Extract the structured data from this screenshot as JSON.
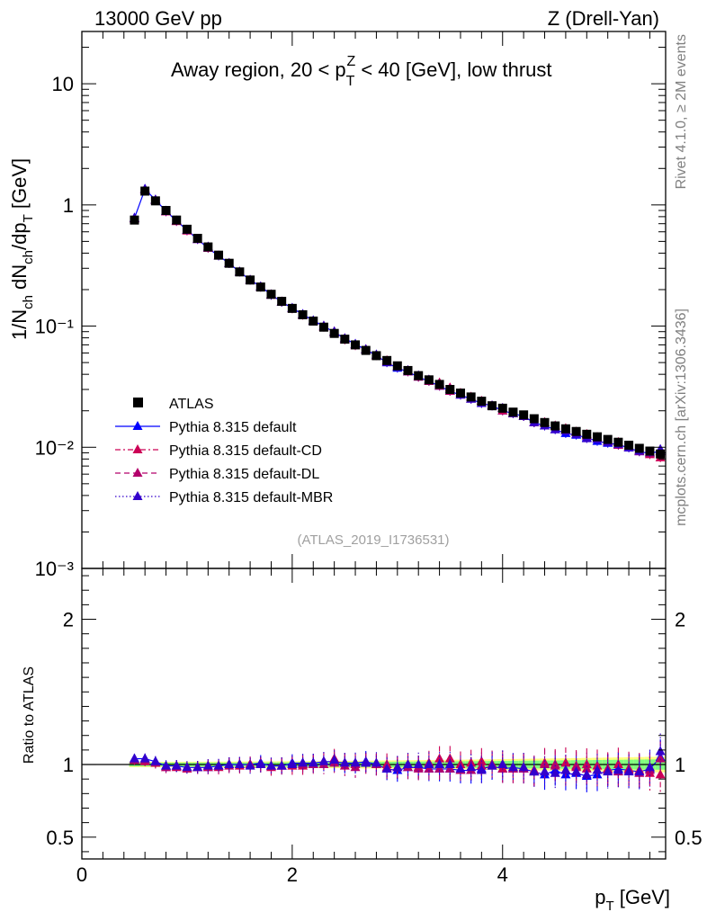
{
  "header": {
    "energy_label": "13000 GeV pp",
    "process_label": "Z (Drell-Yan)"
  },
  "side": {
    "rivet_label": "Rivet 4.1.0, ≥ 2M events",
    "mcplots_label": "mcplots.cern.ch [arXiv:1306.3436]"
  },
  "colors": {
    "atlas": "#000000",
    "default": "#0000ff",
    "default_cd": "#cc0055",
    "default_dl": "#b3006b",
    "default_mbr": "#3300cc",
    "band_yellow": "#ffff80",
    "band_green": "#80ff80"
  },
  "chart_data": [
    {
      "type": "scatter",
      "panel": "main",
      "title": "Away region, 20 < p_T^Z < 40 [GeV], low thrust",
      "ylabel": "1/N_ch dN_ch/dp_T [GeV]",
      "yscale": "log",
      "ylim": [
        0.001,
        27
      ],
      "xlim": [
        0,
        5.55
      ],
      "ytick_labels": [
        "10⁻³",
        "10⁻²",
        "10⁻¹",
        "1",
        "10"
      ],
      "ref_label": "(ATLAS_2019_I1736531)",
      "legend": [
        "ATLAS",
        "Pythia 8.315 default",
        "Pythia 8.315 default-CD",
        "Pythia 8.315 default-DL",
        "Pythia 8.315 default-MBR"
      ],
      "x": [
        0.5,
        0.6,
        0.7,
        0.8,
        0.9,
        1.0,
        1.1,
        1.2,
        1.3,
        1.4,
        1.5,
        1.6,
        1.7,
        1.8,
        1.9,
        2.0,
        2.1,
        2.2,
        2.3,
        2.4,
        2.5,
        2.6,
        2.7,
        2.8,
        2.9,
        3.0,
        3.1,
        3.2,
        3.3,
        3.4,
        3.5,
        3.6,
        3.7,
        3.8,
        3.9,
        4.0,
        4.1,
        4.2,
        4.3,
        4.4,
        4.5,
        4.6,
        4.7,
        4.8,
        4.9,
        5.0,
        5.1,
        5.2,
        5.3,
        5.4,
        5.5
      ],
      "series": [
        {
          "name": "ATLAS",
          "values": [
            0.75,
            1.3,
            1.08,
            0.9,
            0.75,
            0.63,
            0.53,
            0.45,
            0.385,
            0.33,
            0.28,
            0.24,
            0.21,
            0.183,
            0.16,
            0.14,
            0.124,
            0.11,
            0.098,
            0.087,
            0.078,
            0.07,
            0.063,
            0.057,
            0.052,
            0.047,
            0.043,
            0.039,
            0.036,
            0.033,
            0.03,
            0.028,
            0.026,
            0.024,
            0.022,
            0.021,
            0.0195,
            0.0185,
            0.0172,
            0.016,
            0.015,
            0.0142,
            0.0135,
            0.0128,
            0.0122,
            0.0116,
            0.011,
            0.0104,
            0.0098,
            0.0093,
            0.0088
          ]
        },
        {
          "name": "Pythia 8.315 default",
          "values": [
            0.78,
            1.35,
            1.1,
            0.89,
            0.74,
            0.62,
            0.52,
            0.44,
            0.38,
            0.33,
            0.28,
            0.24,
            0.212,
            0.182,
            0.158,
            0.141,
            0.125,
            0.111,
            0.1,
            0.089,
            0.079,
            0.071,
            0.064,
            0.057,
            0.05,
            0.045,
            0.042,
            0.038,
            0.035,
            0.032,
            0.029,
            0.027,
            0.025,
            0.023,
            0.022,
            0.02,
            0.019,
            0.018,
            0.016,
            0.015,
            0.014,
            0.013,
            0.0126,
            0.012,
            0.0112,
            0.0108,
            0.0105,
            0.0099,
            0.0092,
            0.0089,
            0.0093
          ]
        },
        {
          "name": "Pythia 8.315 default-CD",
          "values": [
            0.77,
            1.33,
            1.1,
            0.88,
            0.73,
            0.61,
            0.52,
            0.44,
            0.38,
            0.33,
            0.28,
            0.24,
            0.21,
            0.18,
            0.158,
            0.139,
            0.123,
            0.11,
            0.1,
            0.09,
            0.079,
            0.07,
            0.064,
            0.057,
            0.052,
            0.046,
            0.043,
            0.038,
            0.036,
            0.034,
            0.031,
            0.028,
            0.026,
            0.024,
            0.022,
            0.02,
            0.019,
            0.018,
            0.016,
            0.016,
            0.015,
            0.0143,
            0.0134,
            0.0128,
            0.0121,
            0.0112,
            0.011,
            0.0101,
            0.0094,
            0.0087,
            0.0082
          ]
        },
        {
          "name": "Pythia 8.315 default-DL",
          "values": [
            0.77,
            1.34,
            1.09,
            0.88,
            0.74,
            0.62,
            0.52,
            0.45,
            0.38,
            0.33,
            0.28,
            0.24,
            0.21,
            0.182,
            0.159,
            0.14,
            0.124,
            0.11,
            0.098,
            0.088,
            0.077,
            0.069,
            0.064,
            0.057,
            0.051,
            0.046,
            0.042,
            0.038,
            0.035,
            0.032,
            0.029,
            0.027,
            0.025,
            0.024,
            0.022,
            0.021,
            0.019,
            0.018,
            0.016,
            0.016,
            0.015,
            0.0137,
            0.0133,
            0.0124,
            0.0117,
            0.0112,
            0.0104,
            0.01,
            0.0092,
            0.0089,
            0.0092
          ]
        },
        {
          "name": "Pythia 8.315 default-MBR",
          "values": [
            0.78,
            1.35,
            1.1,
            0.89,
            0.74,
            0.62,
            0.52,
            0.45,
            0.38,
            0.33,
            0.28,
            0.24,
            0.21,
            0.18,
            0.158,
            0.14,
            0.125,
            0.111,
            0.1,
            0.09,
            0.079,
            0.071,
            0.064,
            0.058,
            0.05,
            0.046,
            0.043,
            0.039,
            0.036,
            0.033,
            0.03,
            0.027,
            0.025,
            0.023,
            0.022,
            0.021,
            0.019,
            0.018,
            0.016,
            0.015,
            0.014,
            0.0137,
            0.0128,
            0.0118,
            0.0117,
            0.011,
            0.0106,
            0.0099,
            0.0093,
            0.0091,
            0.0096
          ]
        }
      ]
    },
    {
      "type": "scatter",
      "panel": "ratio",
      "ylabel": "Ratio to ATLAS",
      "xlabel": "p_T [GeV]",
      "ylim": [
        0.35,
        2.35
      ],
      "xlim": [
        0,
        5.55
      ],
      "ytick_labels": [
        "0.5",
        "1",
        "2"
      ],
      "xtick_labels": [
        "0",
        "2",
        "4"
      ],
      "x": [
        0.5,
        0.6,
        0.7,
        0.8,
        0.9,
        1.0,
        1.1,
        1.2,
        1.3,
        1.4,
        1.5,
        1.6,
        1.7,
        1.8,
        1.9,
        2.0,
        2.1,
        2.2,
        2.3,
        2.4,
        2.5,
        2.6,
        2.7,
        2.8,
        2.9,
        3.0,
        3.1,
        3.2,
        3.3,
        3.4,
        3.5,
        3.6,
        3.7,
        3.8,
        3.9,
        4.0,
        4.1,
        4.2,
        4.3,
        4.4,
        4.5,
        4.6,
        4.7,
        4.8,
        4.9,
        5.0,
        5.1,
        5.2,
        5.3,
        5.4,
        5.5
      ],
      "series": [
        {
          "name": "Pythia 8.315 default",
          "values": [
            1.04,
            1.04,
            1.02,
            0.99,
            0.99,
            0.98,
            0.98,
            0.98,
            0.99,
            1.0,
            1.0,
            1.0,
            1.01,
            0.99,
            0.99,
            1.01,
            1.01,
            1.01,
            1.02,
            1.02,
            1.01,
            1.01,
            1.02,
            1.0,
            0.97,
            0.96,
            0.98,
            0.98,
            0.97,
            0.97,
            0.97,
            0.96,
            0.96,
            0.97,
            0.99,
            0.97,
            0.98,
            0.97,
            0.95,
            0.93,
            0.96,
            0.93,
            0.94,
            0.92,
            0.93,
            0.96,
            0.97,
            0.96,
            0.95,
            0.97,
            1.05
          ]
        },
        {
          "name": "Pythia 8.315 default-CD",
          "values": [
            1.03,
            1.02,
            1.01,
            0.98,
            0.98,
            0.97,
            0.98,
            0.98,
            0.98,
            1.0,
            0.99,
            1.0,
            1.0,
            0.98,
            0.99,
            0.99,
            0.99,
            1.0,
            1.02,
            1.04,
            1.01,
            1.0,
            1.01,
            1.0,
            1.0,
            0.98,
            1.0,
            0.98,
            1.01,
            1.04,
            1.04,
            1.0,
            1.01,
            1.02,
            1.0,
            0.97,
            0.97,
            0.98,
            0.95,
            1.01,
            1.0,
            1.01,
            0.99,
            1.0,
            0.99,
            0.97,
            1.0,
            0.97,
            0.96,
            0.94,
            0.93
          ]
        },
        {
          "name": "Pythia 8.315 default-DL",
          "values": [
            1.03,
            1.03,
            1.01,
            0.98,
            0.99,
            0.98,
            0.98,
            0.99,
            0.99,
            0.99,
            1.0,
            1.0,
            1.0,
            0.99,
            0.99,
            1.0,
            1.0,
            1.0,
            1.0,
            1.01,
            0.99,
            0.98,
            1.01,
            1.0,
            0.98,
            0.98,
            0.98,
            0.97,
            0.97,
            0.97,
            0.97,
            0.96,
            0.96,
            0.99,
            1.0,
            1.0,
            0.97,
            0.97,
            0.96,
            1.0,
            0.99,
            0.96,
            0.98,
            0.97,
            0.96,
            0.96,
            0.95,
            0.96,
            0.94,
            0.96,
            1.04
          ]
        },
        {
          "name": "Pythia 8.315 default-MBR",
          "values": [
            1.04,
            1.04,
            1.02,
            0.99,
            0.99,
            0.98,
            0.98,
            0.99,
            0.99,
            1.0,
            1.0,
            0.99,
            1.0,
            0.99,
            0.99,
            1.0,
            1.01,
            1.01,
            1.02,
            1.03,
            1.01,
            1.01,
            1.01,
            1.01,
            0.97,
            0.98,
            1.0,
            1.0,
            1.0,
            1.0,
            1.0,
            0.97,
            0.98,
            0.96,
            0.99,
            1.0,
            0.98,
            0.98,
            0.95,
            0.95,
            0.94,
            0.96,
            0.95,
            0.93,
            0.96,
            0.95,
            0.96,
            0.95,
            0.95,
            0.98,
            1.09
          ]
        }
      ]
    }
  ]
}
